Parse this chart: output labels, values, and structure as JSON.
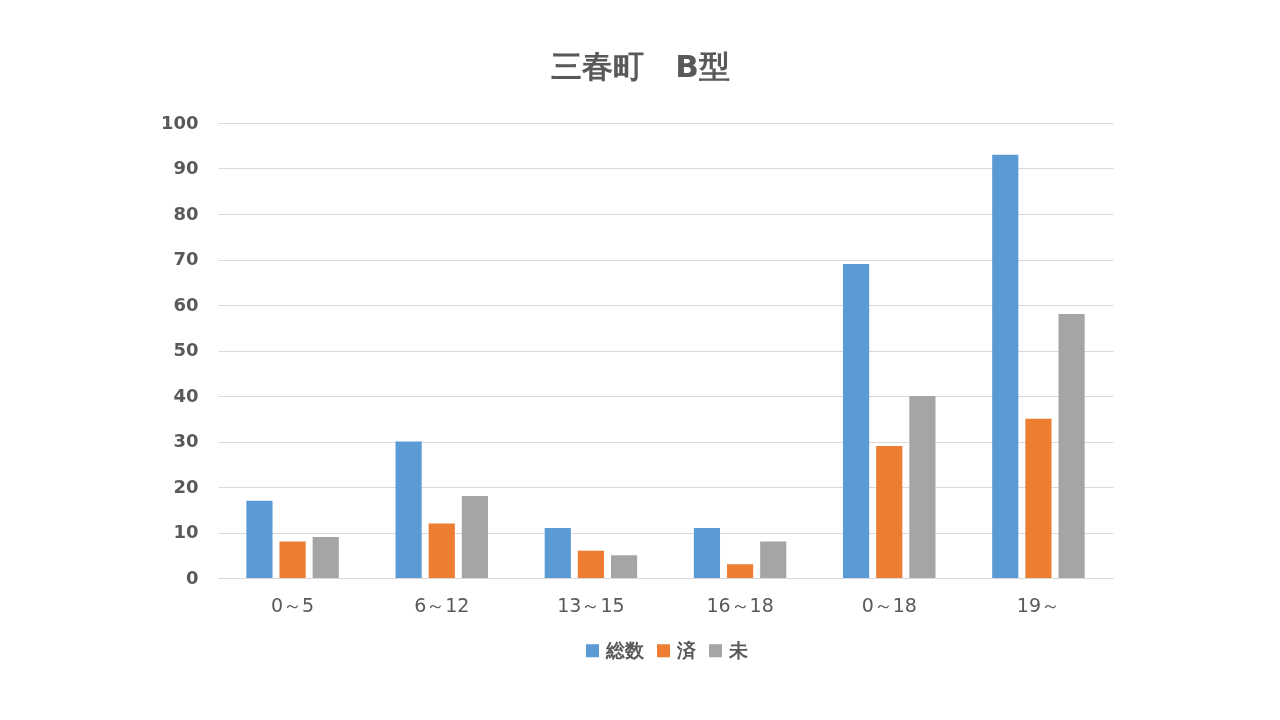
{
  "chart_data": {
    "type": "bar",
    "title": "三春町　B型",
    "categories": [
      "0～5",
      "6～12",
      "13～15",
      "16～18",
      "0～18",
      "19～"
    ],
    "series": [
      {
        "name": "総数",
        "color": "#5b9bd5",
        "values": [
          17,
          30,
          11,
          11,
          69,
          93
        ]
      },
      {
        "name": "済",
        "color": "#ed7d31",
        "values": [
          8,
          12,
          6,
          3,
          29,
          35
        ]
      },
      {
        "name": "未",
        "color": "#a5a5a5",
        "values": [
          9,
          18,
          5,
          8,
          40,
          58
        ]
      }
    ],
    "ylim": [
      0,
      100
    ],
    "yticks": [
      0,
      10,
      20,
      30,
      40,
      50,
      60,
      70,
      80,
      90,
      100
    ],
    "grid": "y",
    "legend": "bottom"
  }
}
